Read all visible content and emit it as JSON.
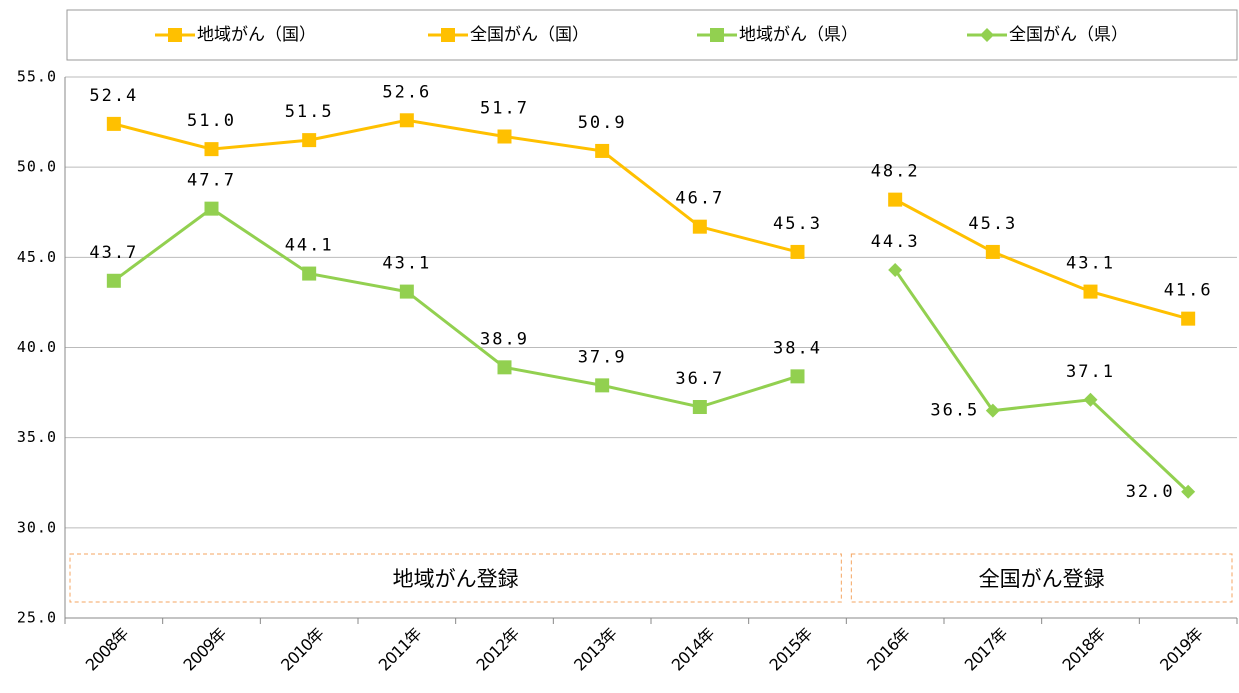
{
  "chart_data": {
    "type": "line",
    "categories": [
      "2008年",
      "2009年",
      "2010年",
      "2011年",
      "2012年",
      "2013年",
      "2014年",
      "2015年",
      "2016年",
      "2017年",
      "2018年",
      "2019年"
    ],
    "series": [
      {
        "name": "地域がん（国）",
        "color": "#FFC000",
        "marker": "square",
        "values": [
          52.4,
          51.0,
          51.5,
          52.6,
          51.7,
          50.9,
          46.7,
          45.3,
          null,
          null,
          null,
          null
        ],
        "value_labels": [
          "52.4",
          "51.0",
          "51.5",
          "52.6",
          "51.7",
          "50.9",
          "46.7",
          "45.3",
          null,
          null,
          null,
          null
        ]
      },
      {
        "name": "全国がん（国）",
        "color": "#FFC000",
        "marker": "square",
        "values": [
          null,
          null,
          null,
          null,
          null,
          null,
          null,
          null,
          48.2,
          45.3,
          43.1,
          41.6
        ],
        "value_labels": [
          null,
          null,
          null,
          null,
          null,
          null,
          null,
          null,
          "48.2",
          "45.3",
          "43.1",
          "41.6"
        ]
      },
      {
        "name": "地域がん（県）",
        "color": "#92D050",
        "marker": "square",
        "values": [
          43.7,
          47.7,
          44.1,
          43.1,
          38.9,
          37.9,
          36.7,
          38.4,
          null,
          null,
          null,
          null
        ],
        "value_labels": [
          "43.7",
          "47.7",
          "44.1",
          "43.1",
          "38.9",
          "37.9",
          "36.7",
          "38.4",
          null,
          null,
          null,
          null
        ]
      },
      {
        "name": "全国がん（県）",
        "color": "#92D050",
        "marker": "diamond",
        "values": [
          null,
          null,
          null,
          null,
          null,
          null,
          null,
          null,
          44.3,
          36.5,
          37.1,
          32.0
        ],
        "value_labels": [
          null,
          null,
          null,
          null,
          null,
          null,
          null,
          null,
          "44.3",
          "36.5",
          "37.1",
          "32.0"
        ]
      }
    ],
    "ylim": [
      25,
      55
    ],
    "yticks": [
      {
        "value": 25,
        "label": "25.0"
      },
      {
        "value": 30,
        "label": "30.0"
      },
      {
        "value": 35,
        "label": "35.0"
      },
      {
        "value": 40,
        "label": "40.0"
      },
      {
        "value": 45,
        "label": "45.0"
      },
      {
        "value": 50,
        "label": "50.0"
      },
      {
        "value": 55,
        "label": "55.0"
      }
    ],
    "grid": true,
    "legend": "top",
    "annotations": [
      "地域がん登録",
      "全国がん登録"
    ]
  }
}
